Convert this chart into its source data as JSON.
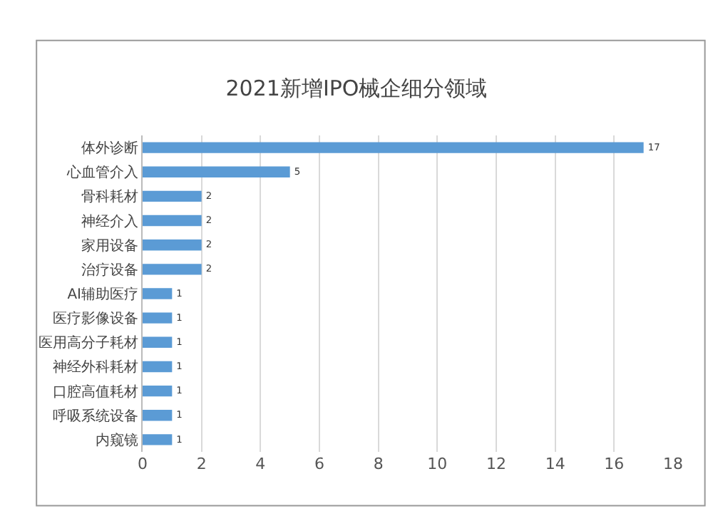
{
  "chart_data": {
    "type": "bar",
    "orientation": "horizontal",
    "title": "2021新增IPO械企细分领域",
    "categories": [
      "体外诊断",
      "心血管介入",
      "骨科耗材",
      "神经介入",
      "家用设备",
      "治疗设备",
      "AI辅助医疗",
      "医疗影像设备",
      "医用高分子耗材",
      "神经外科耗材",
      "口腔高值耗材",
      "呼吸系统设备",
      "内窥镜"
    ],
    "values": [
      17,
      5,
      2,
      2,
      2,
      2,
      1,
      1,
      1,
      1,
      1,
      1,
      1
    ],
    "color": "#5b9bd5",
    "xlim": [
      0,
      18
    ],
    "xticks": [
      0,
      2,
      4,
      6,
      8,
      10,
      12,
      14,
      16,
      18
    ],
    "grid": "x",
    "data_labels": true
  }
}
